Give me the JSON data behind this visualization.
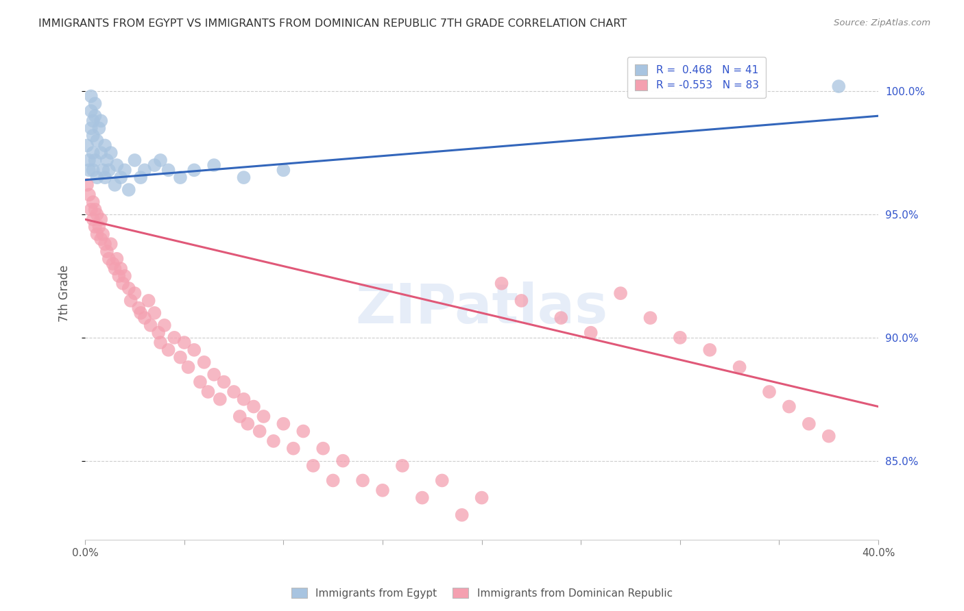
{
  "title": "IMMIGRANTS FROM EGYPT VS IMMIGRANTS FROM DOMINICAN REPUBLIC 7TH GRADE CORRELATION CHART",
  "source": "Source: ZipAtlas.com",
  "ylabel": "7th Grade",
  "ytick_labels": [
    "100.0%",
    "95.0%",
    "90.0%",
    "85.0%"
  ],
  "ytick_values": [
    1.0,
    0.95,
    0.9,
    0.85
  ],
  "xlim": [
    0.0,
    0.4
  ],
  "ylim": [
    0.818,
    1.018
  ],
  "watermark": "ZIPatlas",
  "egypt_R": 0.468,
  "egypt_N": 41,
  "dominican_R": -0.553,
  "dominican_N": 83,
  "egypt_color": "#a8c4e0",
  "dominican_color": "#f4a0b0",
  "egypt_line_color": "#3366bb",
  "dominican_line_color": "#e05878",
  "egypt_x": [
    0.001,
    0.002,
    0.002,
    0.003,
    0.003,
    0.003,
    0.004,
    0.004,
    0.004,
    0.004,
    0.005,
    0.005,
    0.005,
    0.006,
    0.006,
    0.007,
    0.008,
    0.008,
    0.009,
    0.01,
    0.01,
    0.011,
    0.012,
    0.013,
    0.015,
    0.016,
    0.018,
    0.02,
    0.022,
    0.025,
    0.028,
    0.03,
    0.035,
    0.038,
    0.042,
    0.048,
    0.055,
    0.065,
    0.08,
    0.1,
    0.38
  ],
  "egypt_y": [
    0.978,
    0.972,
    0.968,
    0.985,
    0.992,
    0.998,
    0.988,
    0.982,
    0.975,
    0.968,
    0.995,
    0.99,
    0.972,
    0.98,
    0.965,
    0.985,
    0.988,
    0.975,
    0.968,
    0.978,
    0.965,
    0.972,
    0.968,
    0.975,
    0.962,
    0.97,
    0.965,
    0.968,
    0.96,
    0.972,
    0.965,
    0.968,
    0.97,
    0.972,
    0.968,
    0.965,
    0.968,
    0.97,
    0.965,
    0.968,
    1.002
  ],
  "dominican_x": [
    0.001,
    0.002,
    0.003,
    0.004,
    0.004,
    0.005,
    0.005,
    0.006,
    0.006,
    0.007,
    0.008,
    0.008,
    0.009,
    0.01,
    0.011,
    0.012,
    0.013,
    0.014,
    0.015,
    0.016,
    0.017,
    0.018,
    0.019,
    0.02,
    0.022,
    0.023,
    0.025,
    0.027,
    0.028,
    0.03,
    0.032,
    0.033,
    0.035,
    0.037,
    0.038,
    0.04,
    0.042,
    0.045,
    0.048,
    0.05,
    0.052,
    0.055,
    0.058,
    0.06,
    0.062,
    0.065,
    0.068,
    0.07,
    0.075,
    0.078,
    0.08,
    0.082,
    0.085,
    0.088,
    0.09,
    0.095,
    0.1,
    0.105,
    0.11,
    0.115,
    0.12,
    0.125,
    0.13,
    0.14,
    0.15,
    0.16,
    0.17,
    0.18,
    0.19,
    0.2,
    0.21,
    0.22,
    0.24,
    0.255,
    0.27,
    0.285,
    0.3,
    0.315,
    0.33,
    0.345,
    0.355,
    0.365,
    0.375
  ],
  "dominican_y": [
    0.962,
    0.958,
    0.952,
    0.948,
    0.955,
    0.945,
    0.952,
    0.942,
    0.95,
    0.945,
    0.94,
    0.948,
    0.942,
    0.938,
    0.935,
    0.932,
    0.938,
    0.93,
    0.928,
    0.932,
    0.925,
    0.928,
    0.922,
    0.925,
    0.92,
    0.915,
    0.918,
    0.912,
    0.91,
    0.908,
    0.915,
    0.905,
    0.91,
    0.902,
    0.898,
    0.905,
    0.895,
    0.9,
    0.892,
    0.898,
    0.888,
    0.895,
    0.882,
    0.89,
    0.878,
    0.885,
    0.875,
    0.882,
    0.878,
    0.868,
    0.875,
    0.865,
    0.872,
    0.862,
    0.868,
    0.858,
    0.865,
    0.855,
    0.862,
    0.848,
    0.855,
    0.842,
    0.85,
    0.842,
    0.838,
    0.848,
    0.835,
    0.842,
    0.828,
    0.835,
    0.922,
    0.915,
    0.908,
    0.902,
    0.918,
    0.908,
    0.9,
    0.895,
    0.888,
    0.878,
    0.872,
    0.865,
    0.86
  ],
  "egypt_trendline_x": [
    0.0,
    0.4
  ],
  "egypt_trendline_y": [
    0.964,
    0.99
  ],
  "dominican_trendline_x": [
    0.0,
    0.4
  ],
  "dominican_trendline_y": [
    0.948,
    0.872
  ]
}
